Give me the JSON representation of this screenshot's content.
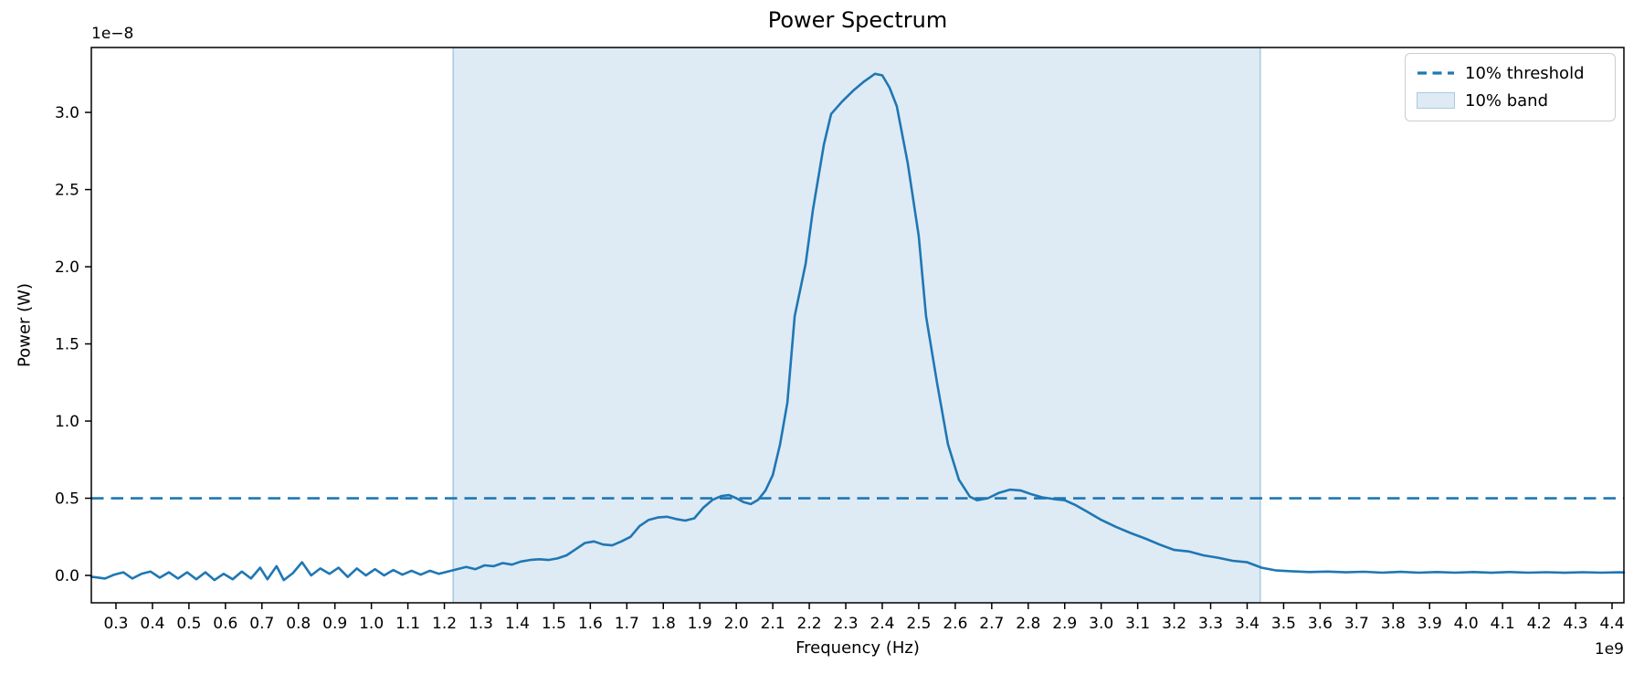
{
  "chart_data": {
    "type": "line",
    "title": "Power Spectrum",
    "xlabel": "Frequency (Hz)",
    "ylabel": "Power (W)",
    "x_offset_text": "1e9",
    "y_offset_text": "1e−8",
    "grid": false,
    "legend_position": "upper right",
    "xlim": [
      0.2325,
      4.4325
    ],
    "ylim": [
      -0.1775,
      3.4206
    ],
    "x_ticks": [
      0.3,
      0.4,
      0.5,
      0.6,
      0.7,
      0.8,
      0.9,
      1.0,
      1.1,
      1.2,
      1.3,
      1.4,
      1.5,
      1.6,
      1.7,
      1.8,
      1.9,
      2.0,
      2.1,
      2.2,
      2.3,
      2.4,
      2.5,
      2.6,
      2.7,
      2.8,
      2.9,
      3.0,
      3.1,
      3.2,
      3.3,
      3.4,
      3.5,
      3.6,
      3.7,
      3.8,
      3.9,
      4.0,
      4.1,
      4.2,
      4.3,
      4.4
    ],
    "y_ticks": [
      0.0,
      0.5,
      1.0,
      1.5,
      2.0,
      2.5,
      3.0
    ],
    "colors": {
      "line": "#1f77b4",
      "threshold": "#1f77b4",
      "band_fill": "rgba(31,119,180,0.15)",
      "band_edge": "rgba(31,119,180,0.28)",
      "spine": "#000000",
      "text": "#000000"
    },
    "threshold": {
      "y": 0.5,
      "label": "10% threshold"
    },
    "band": {
      "x0": 1.224,
      "x1": 3.436,
      "label": "10% band"
    },
    "legend": {
      "items": [
        {
          "label": "10% threshold",
          "type": "dashed-line"
        },
        {
          "label": "10% band",
          "type": "patch"
        }
      ]
    },
    "series": [
      {
        "name": "power spectrum",
        "points": [
          [
            0.2325,
            -0.008
          ],
          [
            0.27,
            -0.02
          ],
          [
            0.295,
            0.005
          ],
          [
            0.32,
            0.02
          ],
          [
            0.345,
            -0.02
          ],
          [
            0.37,
            0.01
          ],
          [
            0.395,
            0.025
          ],
          [
            0.42,
            -0.015
          ],
          [
            0.445,
            0.02
          ],
          [
            0.47,
            -0.02
          ],
          [
            0.495,
            0.02
          ],
          [
            0.52,
            -0.025
          ],
          [
            0.545,
            0.02
          ],
          [
            0.57,
            -0.03
          ],
          [
            0.595,
            0.01
          ],
          [
            0.62,
            -0.025
          ],
          [
            0.645,
            0.025
          ],
          [
            0.67,
            -0.02
          ],
          [
            0.695,
            0.05
          ],
          [
            0.715,
            -0.025
          ],
          [
            0.74,
            0.06
          ],
          [
            0.76,
            -0.03
          ],
          [
            0.785,
            0.015
          ],
          [
            0.81,
            0.085
          ],
          [
            0.835,
            0.0
          ],
          [
            0.86,
            0.045
          ],
          [
            0.885,
            0.01
          ],
          [
            0.91,
            0.05
          ],
          [
            0.935,
            -0.01
          ],
          [
            0.96,
            0.045
          ],
          [
            0.985,
            0.0
          ],
          [
            1.01,
            0.04
          ],
          [
            1.035,
            0.0
          ],
          [
            1.06,
            0.035
          ],
          [
            1.085,
            0.005
          ],
          [
            1.11,
            0.03
          ],
          [
            1.135,
            0.005
          ],
          [
            1.16,
            0.03
          ],
          [
            1.185,
            0.01
          ],
          [
            1.21,
            0.025
          ],
          [
            1.235,
            0.04
          ],
          [
            1.26,
            0.055
          ],
          [
            1.285,
            0.04
          ],
          [
            1.31,
            0.065
          ],
          [
            1.335,
            0.06
          ],
          [
            1.36,
            0.08
          ],
          [
            1.385,
            0.07
          ],
          [
            1.41,
            0.09
          ],
          [
            1.435,
            0.1
          ],
          [
            1.46,
            0.105
          ],
          [
            1.485,
            0.1
          ],
          [
            1.51,
            0.11
          ],
          [
            1.535,
            0.13
          ],
          [
            1.56,
            0.17
          ],
          [
            1.585,
            0.21
          ],
          [
            1.61,
            0.22
          ],
          [
            1.635,
            0.2
          ],
          [
            1.66,
            0.195
          ],
          [
            1.685,
            0.22
          ],
          [
            1.71,
            0.25
          ],
          [
            1.735,
            0.32
          ],
          [
            1.76,
            0.36
          ],
          [
            1.785,
            0.375
          ],
          [
            1.81,
            0.38
          ],
          [
            1.835,
            0.365
          ],
          [
            1.86,
            0.355
          ],
          [
            1.885,
            0.37
          ],
          [
            1.91,
            0.44
          ],
          [
            1.935,
            0.49
          ],
          [
            1.96,
            0.515
          ],
          [
            1.98,
            0.52
          ],
          [
            2.0,
            0.5
          ],
          [
            2.02,
            0.475
          ],
          [
            2.04,
            0.462
          ],
          [
            2.06,
            0.49
          ],
          [
            2.08,
            0.55
          ],
          [
            2.1,
            0.65
          ],
          [
            2.12,
            0.85
          ],
          [
            2.14,
            1.12
          ],
          [
            2.16,
            1.68
          ],
          [
            2.19,
            2.02
          ],
          [
            2.21,
            2.37
          ],
          [
            2.24,
            2.79
          ],
          [
            2.26,
            2.99
          ],
          [
            2.29,
            3.07
          ],
          [
            2.32,
            3.14
          ],
          [
            2.35,
            3.2
          ],
          [
            2.38,
            3.25
          ],
          [
            2.4,
            3.24
          ],
          [
            2.42,
            3.16
          ],
          [
            2.44,
            3.04
          ],
          [
            2.47,
            2.67
          ],
          [
            2.5,
            2.2
          ],
          [
            2.52,
            1.68
          ],
          [
            2.55,
            1.25
          ],
          [
            2.58,
            0.85
          ],
          [
            2.61,
            0.62
          ],
          [
            2.64,
            0.51
          ],
          [
            2.66,
            0.487
          ],
          [
            2.69,
            0.5
          ],
          [
            2.72,
            0.535
          ],
          [
            2.75,
            0.556
          ],
          [
            2.78,
            0.55
          ],
          [
            2.81,
            0.525
          ],
          [
            2.84,
            0.505
          ],
          [
            2.87,
            0.495
          ],
          [
            2.9,
            0.487
          ],
          [
            2.93,
            0.455
          ],
          [
            2.96,
            0.415
          ],
          [
            3.0,
            0.36
          ],
          [
            3.04,
            0.315
          ],
          [
            3.08,
            0.275
          ],
          [
            3.12,
            0.24
          ],
          [
            3.16,
            0.2
          ],
          [
            3.2,
            0.165
          ],
          [
            3.24,
            0.155
          ],
          [
            3.28,
            0.13
          ],
          [
            3.32,
            0.115
          ],
          [
            3.36,
            0.095
          ],
          [
            3.4,
            0.085
          ],
          [
            3.44,
            0.05
          ],
          [
            3.48,
            0.032
          ],
          [
            3.52,
            0.027
          ],
          [
            3.57,
            0.022
          ],
          [
            3.62,
            0.025
          ],
          [
            3.67,
            0.02
          ],
          [
            3.72,
            0.024
          ],
          [
            3.77,
            0.018
          ],
          [
            3.82,
            0.023
          ],
          [
            3.87,
            0.018
          ],
          [
            3.92,
            0.022
          ],
          [
            3.97,
            0.018
          ],
          [
            4.02,
            0.022
          ],
          [
            4.07,
            0.017
          ],
          [
            4.12,
            0.022
          ],
          [
            4.17,
            0.018
          ],
          [
            4.22,
            0.021
          ],
          [
            4.27,
            0.017
          ],
          [
            4.32,
            0.021
          ],
          [
            4.37,
            0.018
          ],
          [
            4.42,
            0.02
          ],
          [
            4.4325,
            0.019
          ]
        ]
      }
    ]
  }
}
